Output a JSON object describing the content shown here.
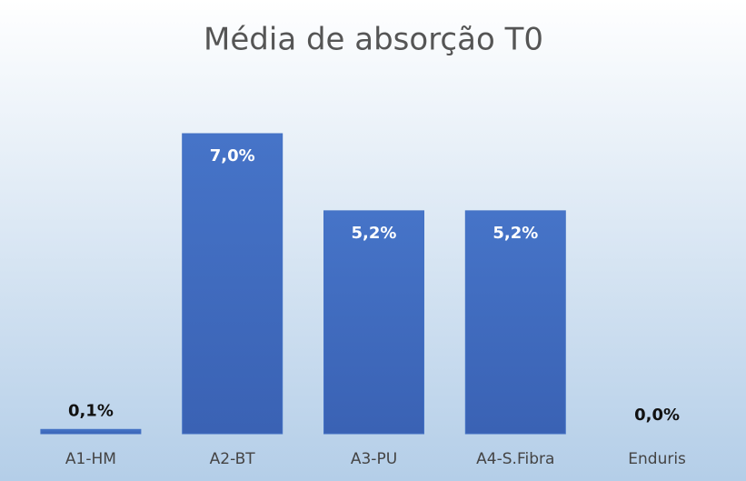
{
  "chart_data": {
    "type": "bar",
    "title": "Média de absorção T0",
    "categories": [
      "A1-HM",
      "A2-BT",
      "A3-PU",
      "A4-S.Fibra",
      "Enduris"
    ],
    "values": [
      0.1,
      7.0,
      5.2,
      5.2,
      0.0
    ],
    "value_labels": [
      "0,1%",
      "7,0%",
      "5,2%",
      "5,2%",
      "0,0%"
    ],
    "color": "#4472c4"
  }
}
